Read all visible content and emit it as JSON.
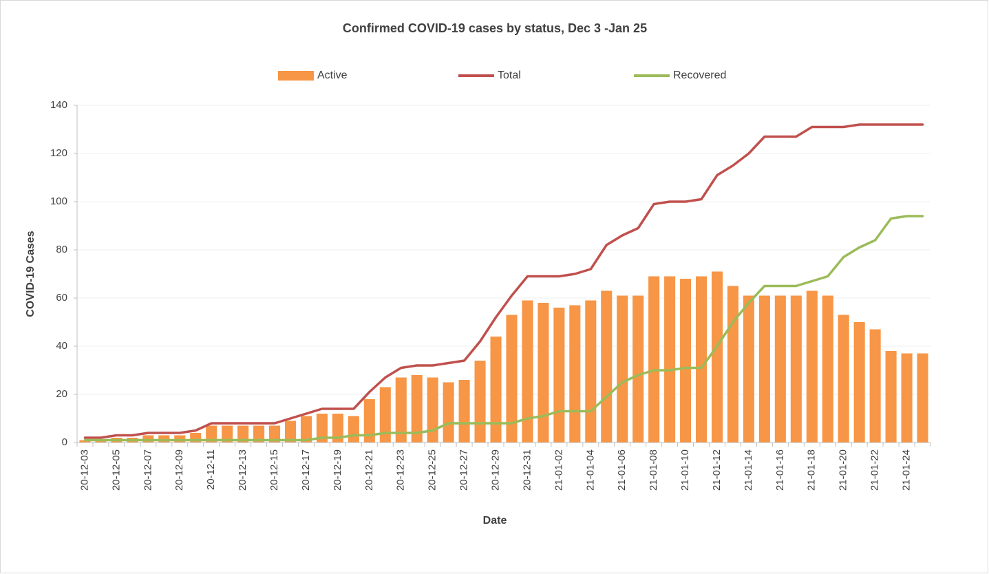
{
  "chart_data": {
    "type": "combo",
    "title": "Confirmed COVID-19 cases by status, Dec 3 -Jan 25",
    "x_label": "Date",
    "y_label": "COVID-19 Cases",
    "legend": "top",
    "grid": true,
    "ylim": [
      0,
      140
    ],
    "yticks": [
      0,
      20,
      40,
      60,
      80,
      100,
      120,
      140
    ],
    "categories": [
      "20-12-03",
      null,
      "20-12-05",
      null,
      "20-12-07",
      null,
      "20-12-09",
      null,
      "20-12-11",
      null,
      "20-12-13",
      null,
      "20-12-15",
      null,
      "20-12-17",
      null,
      "20-12-19",
      null,
      "20-12-21",
      null,
      "20-12-23",
      null,
      "20-12-25",
      null,
      "20-12-27",
      null,
      "20-12-29",
      null,
      "20-12-31",
      null,
      "21-01-02",
      null,
      "21-01-04",
      null,
      "21-01-06",
      null,
      "21-01-08",
      null,
      "21-01-10",
      null,
      "21-01-12",
      null,
      "21-01-14",
      null,
      "21-01-16",
      null,
      "21-01-18",
      null,
      "21-01-20",
      null,
      "21-01-22",
      null,
      "21-01-24",
      null
    ],
    "series": [
      {
        "name": "Active",
        "type": "bar",
        "color": "#f79646",
        "values": [
          1,
          1,
          2,
          2,
          3,
          3,
          3,
          4,
          7,
          7,
          7,
          7,
          7,
          9,
          11,
          12,
          12,
          11,
          18,
          23,
          27,
          28,
          27,
          25,
          26,
          34,
          44,
          53,
          59,
          58,
          56,
          57,
          59,
          63,
          61,
          61,
          69,
          69,
          68,
          69,
          71,
          65,
          61,
          61,
          61,
          61,
          63,
          61,
          53,
          50,
          47,
          38,
          37,
          37
        ]
      },
      {
        "name": "Total",
        "type": "line",
        "color": "#c0504d",
        "values": [
          2,
          2,
          3,
          3,
          4,
          4,
          4,
          5,
          8,
          8,
          8,
          8,
          8,
          10,
          12,
          14,
          14,
          14,
          21,
          27,
          31,
          32,
          32,
          33,
          34,
          42,
          52,
          61,
          69,
          69,
          69,
          70,
          72,
          82,
          86,
          89,
          99,
          100,
          100,
          101,
          111,
          115,
          120,
          127,
          127,
          127,
          131,
          131,
          131,
          132,
          132,
          132,
          132,
          132
        ]
      },
      {
        "name": "Recovered",
        "type": "line",
        "color": "#9bbb59",
        "values": [
          1,
          1,
          1,
          1,
          1,
          1,
          1,
          1,
          1,
          1,
          1,
          1,
          1,
          1,
          1,
          2,
          2,
          3,
          3,
          4,
          4,
          4,
          5,
          8,
          8,
          8,
          8,
          8,
          10,
          11,
          13,
          13,
          13,
          19,
          25,
          28,
          30,
          30,
          31,
          31,
          40,
          50,
          58,
          65,
          65,
          65,
          67,
          69,
          77,
          81,
          84,
          93,
          94,
          94
        ]
      }
    ]
  }
}
